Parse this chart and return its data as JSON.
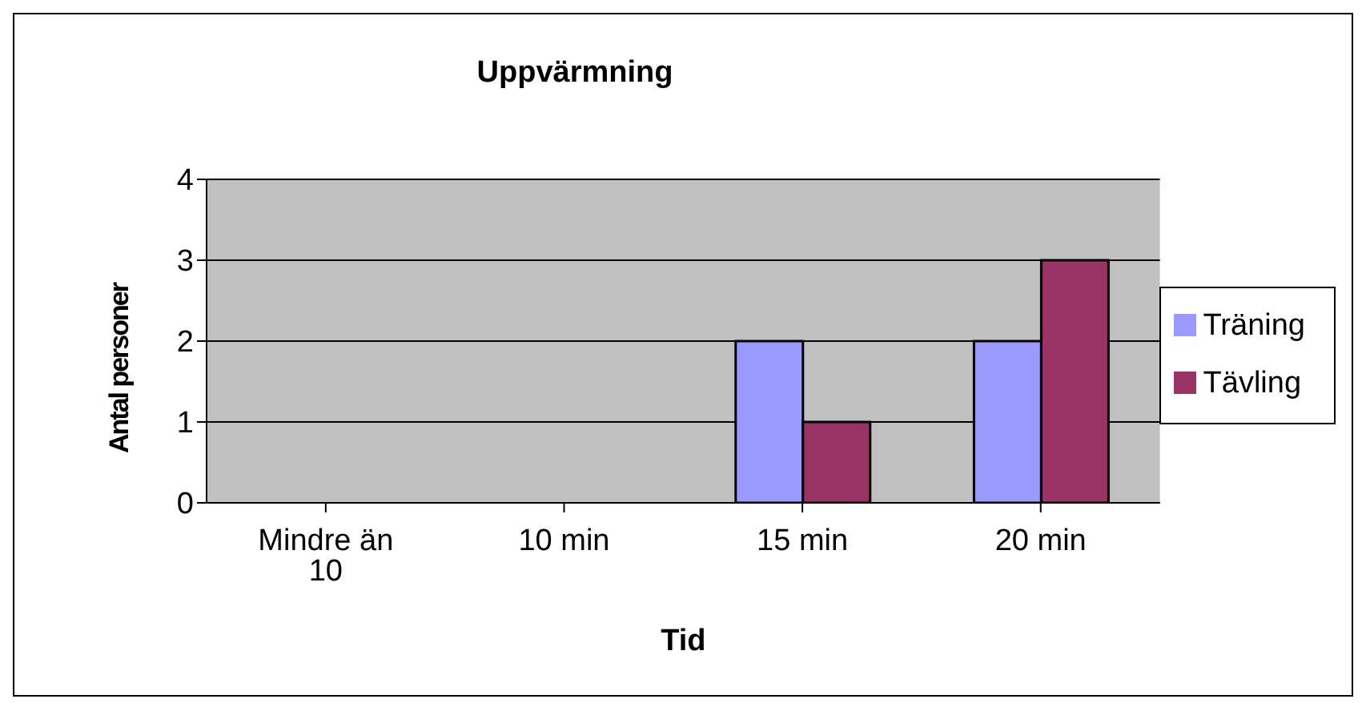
{
  "chart_data": {
    "type": "bar",
    "title": "Uppvärmning",
    "xlabel": "Tid",
    "ylabel": "Antal personer",
    "categories": [
      "Mindre än 10",
      "10 min",
      "15 min",
      "20 min"
    ],
    "series": [
      {
        "name": "Träning",
        "color": "#9999ff",
        "values": [
          0,
          0,
          2,
          2
        ]
      },
      {
        "name": "Tävling",
        "color": "#993366",
        "values": [
          0,
          0,
          1,
          3
        ]
      }
    ],
    "ylim": [
      0,
      4
    ],
    "yticks": [
      0,
      1,
      2,
      3,
      4
    ],
    "grid": "y",
    "legend": "right"
  }
}
